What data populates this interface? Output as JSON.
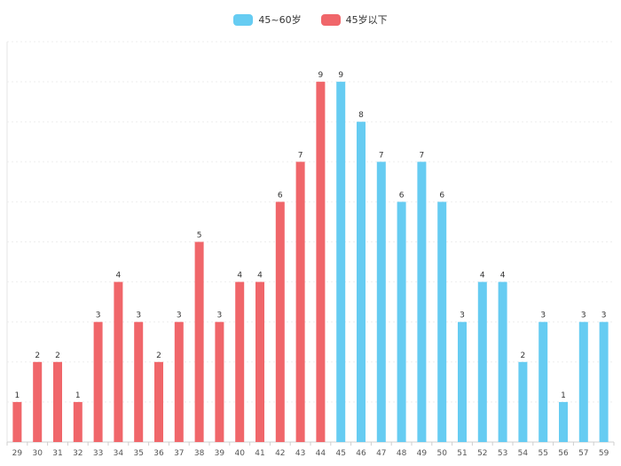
{
  "chart_data": {
    "type": "bar",
    "title": "",
    "xlabel": "",
    "ylabel": "",
    "ylim": [
      0,
      10
    ],
    "grid": true,
    "legend_position": "top-center",
    "series": [
      {
        "name": "45~60岁",
        "color": "#66ccf2"
      },
      {
        "name": "45岁以下",
        "color": "#f0666a"
      }
    ],
    "categories": [
      "29",
      "30",
      "31",
      "32",
      "33",
      "34",
      "35",
      "36",
      "37",
      "38",
      "39",
      "40",
      "41",
      "42",
      "43",
      "44",
      "45",
      "46",
      "47",
      "48",
      "49",
      "50",
      "51",
      "52",
      "53",
      "54",
      "55",
      "56",
      "57",
      "59"
    ],
    "values": [
      1,
      2,
      2,
      1,
      3,
      4,
      3,
      2,
      3,
      5,
      3,
      4,
      4,
      6,
      7,
      9,
      9,
      8,
      7,
      6,
      7,
      6,
      3,
      4,
      4,
      2,
      3,
      1,
      3,
      3
    ],
    "series_index": [
      1,
      1,
      1,
      1,
      1,
      1,
      1,
      1,
      1,
      1,
      1,
      1,
      1,
      1,
      1,
      1,
      0,
      0,
      0,
      0,
      0,
      0,
      0,
      0,
      0,
      0,
      0,
      0,
      0,
      0
    ]
  }
}
